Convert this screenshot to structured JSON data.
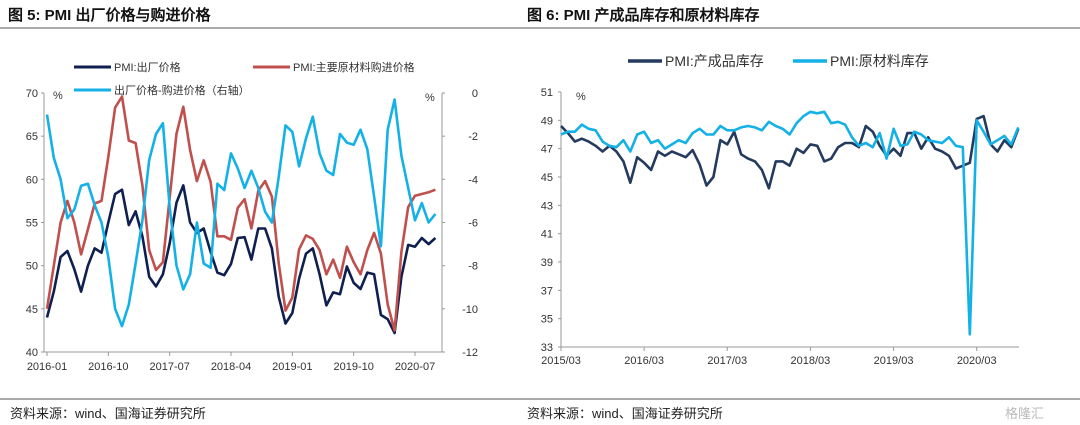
{
  "figure5": {
    "title": "图 5:  PMI 出厂价格与购进价格",
    "source": "资料来源：wind、国海证券研究所"
  },
  "figure6": {
    "title": "图 6:  PMI 产成品库存和原材料库存",
    "source": "资料来源：wind、国海证券研究所"
  },
  "watermark": "格隆汇",
  "chart_data": [
    {
      "type": "line",
      "title": "PMI 出厂价格与购进价格",
      "ylabel": "%",
      "y2label": "%",
      "ylim": [
        40,
        70
      ],
      "y2lim": [
        -12,
        0
      ],
      "yticks": [
        "70",
        "65",
        "60",
        "55",
        "50",
        "45",
        "40"
      ],
      "y2ticks": [
        "0",
        "-2",
        "-4",
        "-6",
        "-8",
        "-10",
        "-12"
      ],
      "xticks": [
        "2016-01",
        "2016-10",
        "2017-07",
        "2018-04",
        "2019-01",
        "2019-10",
        "2020-07"
      ],
      "x_start": "2016-01",
      "x_freq": "monthly",
      "series": [
        {
          "name": "PMI:出厂价格",
          "axis": "left",
          "color": "#0f1f4f",
          "values": [
            44.0,
            47.0,
            51.0,
            51.7,
            49.6,
            47.0,
            50.0,
            52.0,
            51.5,
            55.0,
            58.3,
            58.8,
            54.7,
            56.3,
            53.4,
            48.7,
            47.6,
            49.0,
            52.6,
            57.3,
            59.3,
            55.0,
            53.8,
            54.3,
            51.6,
            49.2,
            48.9,
            50.2,
            53.2,
            53.3,
            50.7,
            54.3,
            54.3,
            52.0,
            46.4,
            43.3,
            44.5,
            48.5,
            51.4,
            52.0,
            49.0,
            45.4,
            46.9,
            46.7,
            49.9,
            48.0,
            47.3,
            49.2,
            49.0,
            44.3,
            43.8,
            42.2,
            48.7,
            52.4,
            52.2,
            53.2,
            52.5,
            53.2
          ]
        },
        {
          "name": "PMI:主要原材料购进价格",
          "axis": "left",
          "color": "#c0504d",
          "values": [
            45.0,
            50.0,
            55.0,
            57.5,
            55.0,
            51.3,
            54.2,
            57.2,
            57.5,
            62.6,
            68.3,
            69.6,
            64.5,
            64.2,
            59.3,
            51.8,
            49.5,
            50.4,
            57.9,
            65.3,
            68.4,
            63.4,
            59.8,
            62.2,
            59.7,
            53.4,
            53.4,
            53.0,
            56.7,
            57.7,
            54.3,
            58.7,
            59.8,
            58.0,
            50.3,
            44.8,
            46.3,
            51.9,
            53.5,
            53.1,
            51.8,
            49.0,
            50.7,
            48.6,
            52.2,
            50.4,
            49.0,
            51.8,
            53.8,
            51.4,
            45.5,
            42.5,
            51.6,
            56.8,
            58.1,
            58.3,
            58.5,
            58.8
          ]
        },
        {
          "name": "出厂价格-购进价格（右轴）",
          "axis": "right",
          "color": "#14b1e7",
          "values": [
            -1.0,
            -3.0,
            -4.0,
            -5.8,
            -5.4,
            -4.3,
            -4.2,
            -5.2,
            -6.0,
            -7.6,
            -10.0,
            -10.8,
            -9.8,
            -7.9,
            -5.9,
            -3.1,
            -1.9,
            -1.4,
            -5.3,
            -8.0,
            -9.1,
            -8.4,
            -6.0,
            -7.9,
            -8.1,
            -4.2,
            -4.5,
            -2.8,
            -3.5,
            -4.4,
            -3.6,
            -4.4,
            -5.5,
            -6.0,
            -3.9,
            -1.5,
            -1.8,
            -3.4,
            -2.1,
            -1.1,
            -2.8,
            -3.6,
            -3.8,
            -1.9,
            -2.3,
            -2.4,
            -1.7,
            -2.6,
            -4.8,
            -7.1,
            -1.7,
            -0.3,
            -2.9,
            -4.4,
            -5.9,
            -5.1,
            -6.0,
            -5.6
          ]
        }
      ]
    },
    {
      "type": "line",
      "title": "PMI 产成品库存和原材料库存",
      "ylabel": "%",
      "ylim": [
        33,
        51
      ],
      "yticks": [
        "51",
        "49",
        "47",
        "45",
        "43",
        "41",
        "39",
        "37",
        "35",
        "33"
      ],
      "xticks": [
        "2015/03",
        "2016/03",
        "2017/03",
        "2018/03",
        "2019/03",
        "2020/03"
      ],
      "x_start": "2015/03",
      "x_freq": "monthly",
      "series": [
        {
          "name": "PMI:产成品库存",
          "color": "#243a5e",
          "values": [
            48.6,
            48.1,
            47.5,
            47.7,
            47.5,
            47.2,
            46.8,
            47.2,
            46.8,
            46.1,
            44.6,
            46.4,
            46.0,
            45.5,
            46.8,
            46.5,
            46.8,
            46.6,
            46.4,
            46.9,
            45.9,
            44.4,
            45.0,
            47.6,
            47.3,
            48.2,
            46.6,
            46.3,
            46.1,
            45.5,
            44.2,
            46.1,
            46.1,
            45.8,
            47.0,
            46.7,
            47.3,
            47.2,
            46.1,
            46.3,
            47.1,
            47.4,
            47.4,
            47.1,
            48.6,
            48.2,
            47.2,
            46.5,
            47.0,
            46.5,
            48.1,
            48.1,
            47.0,
            47.8,
            47.0,
            46.8,
            46.5,
            45.6,
            45.8,
            46.0,
            49.1,
            49.3,
            47.3,
            46.8,
            47.6,
            47.1,
            48.4
          ]
        },
        {
          "name": "PMI:原材料库存",
          "color": "#14b1e7",
          "values": [
            48.0,
            48.2,
            48.2,
            48.7,
            48.4,
            48.3,
            47.5,
            47.2,
            47.1,
            47.6,
            46.8,
            48.0,
            48.2,
            47.4,
            47.6,
            47.0,
            47.3,
            47.6,
            47.4,
            48.1,
            48.4,
            48.0,
            48.0,
            48.6,
            48.3,
            48.3,
            48.5,
            48.6,
            48.5,
            48.3,
            48.9,
            48.6,
            48.4,
            48.0,
            48.8,
            49.3,
            49.6,
            49.5,
            49.6,
            48.8,
            48.9,
            48.7,
            47.8,
            47.2,
            47.4,
            47.1,
            48.1,
            46.3,
            48.4,
            47.2,
            47.3,
            48.2,
            48.0,
            47.6,
            47.5,
            47.4,
            47.8,
            47.2,
            47.1,
            33.9,
            49.0,
            48.2,
            47.3,
            47.6,
            47.9,
            47.3,
            48.5
          ]
        }
      ]
    }
  ]
}
